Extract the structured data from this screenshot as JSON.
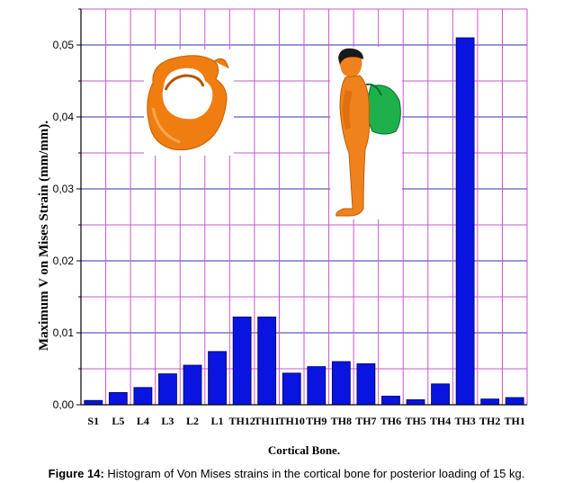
{
  "chart_data": {
    "type": "bar",
    "xlabel": "Cortical Bone.",
    "ylabel": "Maximum V on Mises Strain (mm/mm).",
    "categories": [
      "S1",
      "L5",
      "L4",
      "L3",
      "L2",
      "L1",
      "TH12",
      "TH11",
      "TH10",
      "TH9",
      "TH8",
      "TH7",
      "TH6",
      "TH5",
      "TH4",
      "TH3",
      "TH2",
      "TH1"
    ],
    "values": [
      0.0006,
      0.0017,
      0.0024,
      0.0043,
      0.0055,
      0.0074,
      0.0122,
      0.0122,
      0.0044,
      0.0053,
      0.006,
      0.0057,
      0.0012,
      0.0007,
      0.0029,
      0.051,
      0.0008,
      0.001
    ],
    "ylim": [
      0,
      0.055
    ],
    "yticks": [
      "0,00",
      "0,01",
      "0,02",
      "0,03",
      "0,04",
      "0,05"
    ],
    "grid": true,
    "bar_color": "#0a14e0",
    "grid_color_major": "#3333aa",
    "grid_color_minor": "#cc55cc"
  },
  "caption": {
    "label": "Figure 14:",
    "text": " Histogram of Von Mises strains in the cortical bone for posterior loading of 15 kg."
  },
  "images": {
    "vertebra": "vertebra-illustration",
    "person": "person-with-backpack-illustration"
  }
}
